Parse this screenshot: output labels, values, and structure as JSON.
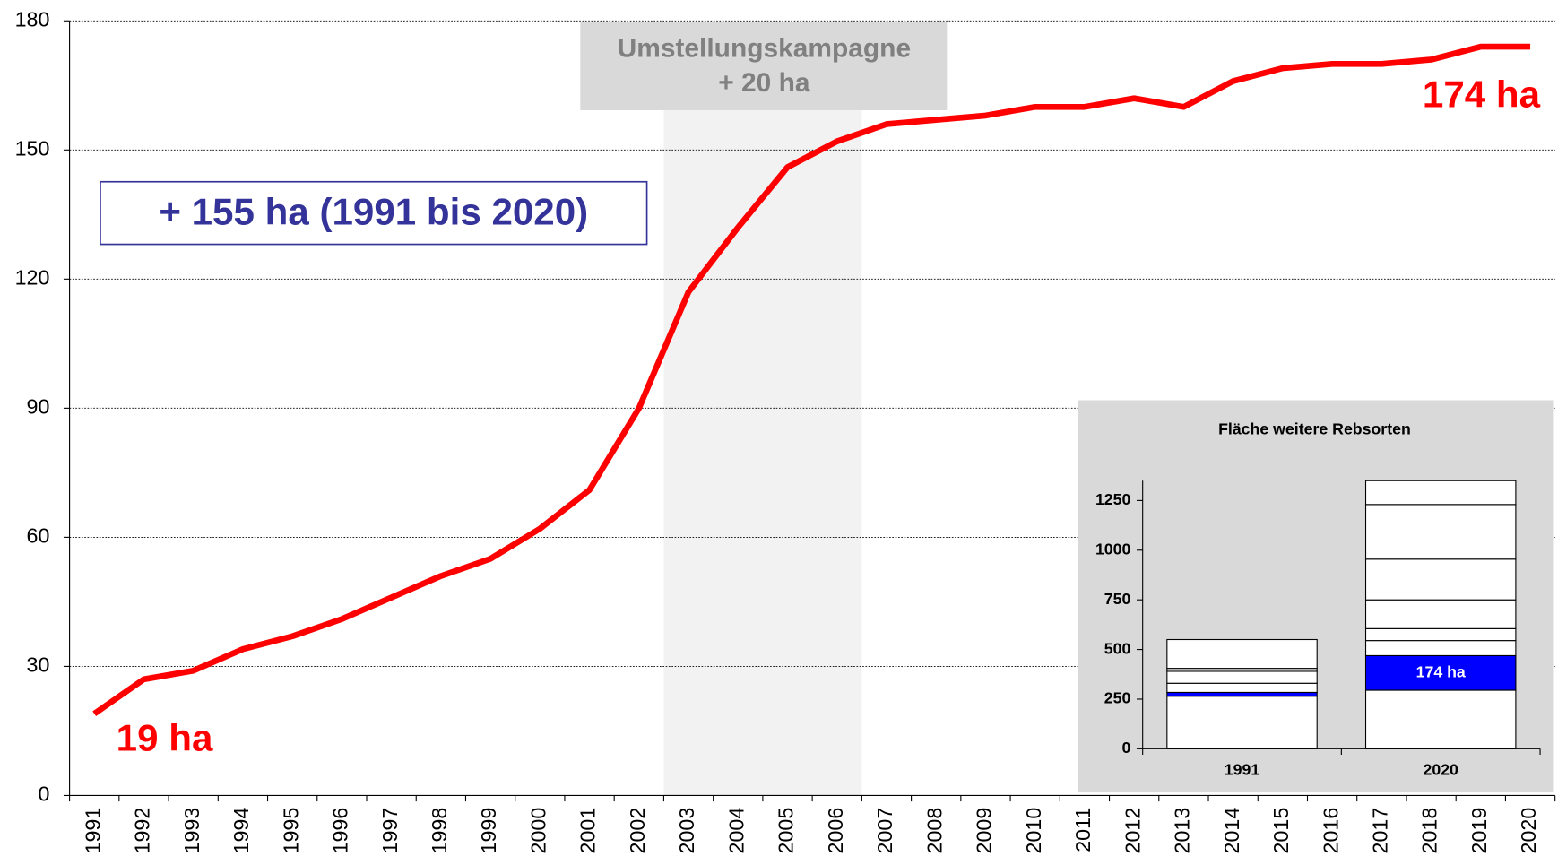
{
  "chart_data": [
    {
      "type": "line",
      "color": "#ff0000",
      "categories": [
        "1991",
        "1992",
        "1993",
        "1994",
        "1995",
        "1996",
        "1997",
        "1998",
        "1999",
        "2000",
        "2001",
        "2002",
        "2003",
        "2004",
        "2005",
        "2006",
        "2007",
        "2008",
        "2009",
        "2010",
        "2011",
        "2012",
        "2013",
        "2014",
        "2015",
        "2016",
        "2017",
        "2018",
        "2019",
        "2020"
      ],
      "values": [
        19,
        27,
        29,
        34,
        37,
        41,
        46,
        51,
        55,
        62,
        71,
        90,
        117,
        132,
        146,
        152,
        156,
        157,
        158,
        160,
        160,
        162,
        160,
        166,
        169,
        170,
        170,
        171,
        174,
        174
      ],
      "ylim": [
        0,
        180
      ],
      "yticks": [
        0,
        30,
        60,
        90,
        120,
        150,
        180
      ],
      "grid": true,
      "highlight_categories": [
        "2003",
        "2006"
      ],
      "highlight_label": [
        "Umstellungskampagne",
        "+ 20 ha"
      ],
      "start_label": "19 ha",
      "end_label": "174 ha",
      "summary_label": "+ 155 ha (1991 bis 2020)"
    },
    {
      "type": "stacked_bar",
      "title": "Fläche weitere Rebsorten",
      "categories": [
        "1991",
        "2020"
      ],
      "series": [
        {
          "color": "#ffffff",
          "values": [
            265,
            295
          ]
        },
        {
          "color": "#0000ff",
          "values": [
            19,
            174
          ],
          "value_labels": [
            null,
            "174 ha"
          ]
        },
        {
          "color": "#ffffff",
          "values": [
            46,
            76
          ]
        },
        {
          "color": "#ffffff",
          "values": [
            60,
            60
          ]
        },
        {
          "color": "#ffffff",
          "values": [
            15,
            145
          ]
        },
        {
          "color": "#ffffff",
          "values": [
            145,
            205
          ]
        },
        {
          "color": "#ffffff",
          "values": [
            0,
            275
          ]
        },
        {
          "color": "#ffffff",
          "values": [
            0,
            120
          ]
        }
      ],
      "ylim": [
        0,
        1350
      ],
      "yticks": [
        0,
        250,
        500,
        750,
        1000,
        1250
      ]
    }
  ]
}
